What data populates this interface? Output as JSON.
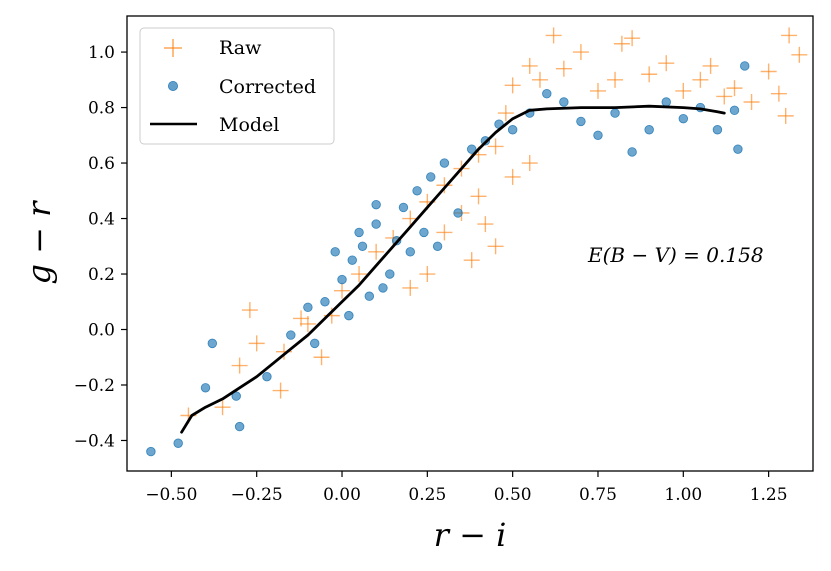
{
  "chart_data": {
    "type": "scatter",
    "xlabel": "r − i",
    "ylabel": "g − r",
    "xlim": [
      -0.63,
      1.38
    ],
    "ylim": [
      -0.51,
      1.13
    ],
    "xticks": [
      -0.5,
      -0.25,
      0.0,
      0.25,
      0.5,
      0.75,
      1.0,
      1.25
    ],
    "xtick_labels": [
      "−0.50",
      "−0.25",
      "0.00",
      "0.25",
      "0.50",
      "0.75",
      "1.00",
      "1.25"
    ],
    "yticks": [
      -0.4,
      -0.2,
      0.0,
      0.2,
      0.4,
      0.6,
      0.8,
      1.0
    ],
    "ytick_labels": [
      "−0.4",
      "−0.2",
      "0.0",
      "0.2",
      "0.4",
      "0.6",
      "0.8",
      "1.0"
    ],
    "grid": false,
    "legend_position": "top-left",
    "annotation": "E(B − V) = 0.158",
    "series": [
      {
        "name": "Raw",
        "marker": "plus",
        "color": "#ff7f0e",
        "points": [
          [
            -0.45,
            -0.31
          ],
          [
            -0.35,
            -0.28
          ],
          [
            -0.3,
            -0.13
          ],
          [
            -0.27,
            0.07
          ],
          [
            -0.25,
            -0.05
          ],
          [
            -0.18,
            -0.22
          ],
          [
            -0.17,
            -0.08
          ],
          [
            -0.12,
            0.04
          ],
          [
            -0.1,
            0.02
          ],
          [
            -0.06,
            -0.1
          ],
          [
            -0.03,
            0.05
          ],
          [
            0.0,
            0.14
          ],
          [
            0.05,
            0.2
          ],
          [
            0.1,
            0.28
          ],
          [
            0.15,
            0.33
          ],
          [
            0.2,
            0.4
          ],
          [
            0.25,
            0.46
          ],
          [
            0.3,
            0.52
          ],
          [
            0.35,
            0.58
          ],
          [
            0.4,
            0.63
          ],
          [
            0.45,
            0.66
          ],
          [
            0.48,
            0.78
          ],
          [
            0.5,
            0.88
          ],
          [
            0.55,
            0.95
          ],
          [
            0.58,
            0.9
          ],
          [
            0.62,
            1.06
          ],
          [
            0.65,
            0.94
          ],
          [
            0.7,
            1.0
          ],
          [
            0.75,
            0.86
          ],
          [
            0.8,
            0.9
          ],
          [
            0.82,
            1.03
          ],
          [
            0.85,
            1.05
          ],
          [
            0.9,
            0.92
          ],
          [
            0.95,
            0.96
          ],
          [
            1.0,
            0.86
          ],
          [
            1.05,
            0.9
          ],
          [
            1.08,
            0.95
          ],
          [
            1.12,
            0.84
          ],
          [
            1.15,
            0.87
          ],
          [
            1.2,
            0.82
          ],
          [
            1.25,
            0.93
          ],
          [
            1.28,
            0.85
          ],
          [
            1.3,
            0.77
          ],
          [
            1.31,
            1.06
          ],
          [
            1.34,
            0.99
          ],
          [
            0.3,
            0.35
          ],
          [
            0.35,
            0.42
          ],
          [
            0.4,
            0.48
          ],
          [
            0.45,
            0.3
          ],
          [
            0.5,
            0.55
          ],
          [
            0.55,
            0.6
          ],
          [
            0.25,
            0.2
          ],
          [
            0.2,
            0.15
          ],
          [
            0.38,
            0.25
          ],
          [
            0.42,
            0.38
          ]
        ]
      },
      {
        "name": "Corrected",
        "marker": "circle",
        "color": "#1f77b4",
        "points": [
          [
            -0.56,
            -0.44
          ],
          [
            -0.48,
            -0.41
          ],
          [
            -0.4,
            -0.21
          ],
          [
            -0.38,
            -0.05
          ],
          [
            -0.31,
            -0.24
          ],
          [
            -0.3,
            -0.35
          ],
          [
            -0.22,
            -0.17
          ],
          [
            -0.15,
            -0.02
          ],
          [
            -0.1,
            0.08
          ],
          [
            -0.08,
            -0.05
          ],
          [
            -0.05,
            0.1
          ],
          [
            0.0,
            0.18
          ],
          [
            0.03,
            0.25
          ],
          [
            0.06,
            0.3
          ],
          [
            0.1,
            0.38
          ],
          [
            0.14,
            0.2
          ],
          [
            0.18,
            0.44
          ],
          [
            0.22,
            0.5
          ],
          [
            0.26,
            0.55
          ],
          [
            0.3,
            0.6
          ],
          [
            0.34,
            0.42
          ],
          [
            0.38,
            0.65
          ],
          [
            0.42,
            0.68
          ],
          [
            0.46,
            0.74
          ],
          [
            0.5,
            0.72
          ],
          [
            0.55,
            0.78
          ],
          [
            0.6,
            0.85
          ],
          [
            0.65,
            0.82
          ],
          [
            0.7,
            0.75
          ],
          [
            0.75,
            0.7
          ],
          [
            0.8,
            0.78
          ],
          [
            0.85,
            0.64
          ],
          [
            0.9,
            0.72
          ],
          [
            0.95,
            0.82
          ],
          [
            1.0,
            0.76
          ],
          [
            1.05,
            0.8
          ],
          [
            1.1,
            0.72
          ],
          [
            1.15,
            0.79
          ],
          [
            1.16,
            0.65
          ],
          [
            1.18,
            0.95
          ],
          [
            0.02,
            0.05
          ],
          [
            0.08,
            0.12
          ],
          [
            0.12,
            0.15
          ],
          [
            0.16,
            0.32
          ],
          [
            0.2,
            0.28
          ],
          [
            0.24,
            0.35
          ],
          [
            0.28,
            0.3
          ],
          [
            0.05,
            0.35
          ],
          [
            0.1,
            0.45
          ],
          [
            -0.02,
            0.28
          ]
        ]
      },
      {
        "name": "Model",
        "marker": "line",
        "color": "#000000",
        "points": [
          [
            -0.47,
            -0.37
          ],
          [
            -0.44,
            -0.31
          ],
          [
            -0.4,
            -0.28
          ],
          [
            -0.35,
            -0.25
          ],
          [
            -0.3,
            -0.21
          ],
          [
            -0.25,
            -0.17
          ],
          [
            -0.2,
            -0.12
          ],
          [
            -0.15,
            -0.07
          ],
          [
            -0.1,
            -0.02
          ],
          [
            -0.05,
            0.04
          ],
          [
            0.0,
            0.1
          ],
          [
            0.05,
            0.16
          ],
          [
            0.1,
            0.23
          ],
          [
            0.15,
            0.3
          ],
          [
            0.2,
            0.37
          ],
          [
            0.25,
            0.44
          ],
          [
            0.3,
            0.51
          ],
          [
            0.35,
            0.58
          ],
          [
            0.4,
            0.65
          ],
          [
            0.45,
            0.71
          ],
          [
            0.5,
            0.76
          ],
          [
            0.55,
            0.79
          ],
          [
            0.6,
            0.795
          ],
          [
            0.7,
            0.8
          ],
          [
            0.8,
            0.8
          ],
          [
            0.9,
            0.805
          ],
          [
            1.0,
            0.8
          ],
          [
            1.05,
            0.795
          ],
          [
            1.1,
            0.785
          ],
          [
            1.12,
            0.78
          ]
        ]
      }
    ]
  }
}
